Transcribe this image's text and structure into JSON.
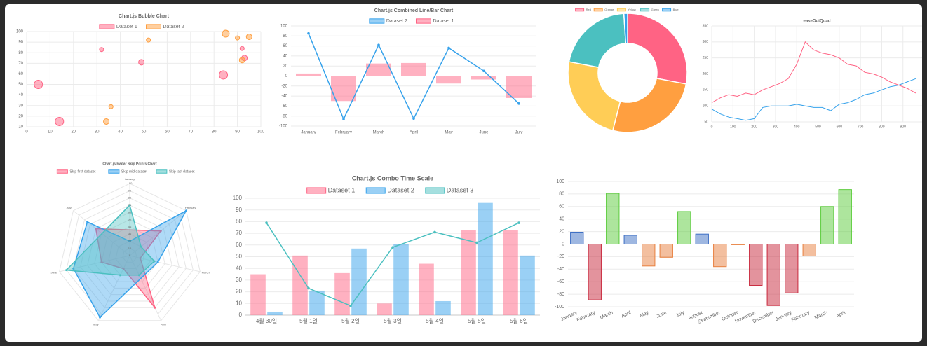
{
  "chart_data": [
    {
      "type": "bubble",
      "title": "Chart.js Bubble Chart",
      "xlim": [
        0,
        100
      ],
      "xticks": [
        0,
        10,
        20,
        30,
        40,
        50,
        60,
        70,
        80,
        90,
        100
      ],
      "ylim": [
        10,
        100
      ],
      "yticks": [
        10,
        20,
        30,
        40,
        50,
        60,
        70,
        80,
        90,
        100
      ],
      "grid": true,
      "series": [
        {
          "name": "Dataset 1",
          "color": "#ff6384",
          "x": [
            5,
            14,
            32,
            49,
            84,
            92,
            93
          ],
          "values": [
            50,
            15,
            83,
            71,
            59,
            84,
            75
          ],
          "r": [
            6,
            6,
            3,
            4,
            6,
            3,
            4
          ]
        },
        {
          "name": "Dataset 2",
          "color": "#ff9f40",
          "x": [
            34,
            36,
            52,
            85,
            90,
            92,
            95
          ],
          "values": [
            15,
            29,
            92,
            98,
            94,
            73,
            95
          ],
          "r": [
            4,
            3,
            3,
            5,
            3,
            4,
            4
          ]
        }
      ]
    },
    {
      "type": "bar",
      "title": "Chart.js Combined Line/Bar Chart",
      "categories": [
        "January",
        "February",
        "March",
        "April",
        "May",
        "June",
        "July"
      ],
      "ylim": [
        -100,
        100
      ],
      "yticks": [
        -100,
        -80,
        -60,
        -40,
        -20,
        0,
        20,
        40,
        60,
        80,
        100
      ],
      "grid": true,
      "series": [
        {
          "name": "Dataset 2",
          "type": "line",
          "color": "#36a2eb",
          "values": [
            85,
            -86,
            62,
            -85,
            56,
            10,
            -55
          ]
        },
        {
          "name": "Dataset 1",
          "type": "bar",
          "color": "#ff6384",
          "values": [
            5,
            -50,
            25,
            26,
            -15,
            -7,
            -44
          ]
        }
      ]
    },
    {
      "type": "doughnut",
      "categories": [
        "Red",
        "Orange",
        "Yellow",
        "Green",
        "Blue"
      ],
      "colors": [
        "#ff6384",
        "#ff9f40",
        "#ffcd56",
        "#4bc0c0",
        "#36a2eb"
      ],
      "values": [
        28,
        26,
        24,
        21,
        1
      ]
    },
    {
      "type": "line",
      "title": "easeOutQuad",
      "x": [
        0,
        40,
        80,
        120,
        160,
        200,
        240,
        280,
        320,
        360,
        400,
        440,
        480,
        520,
        560,
        600,
        640,
        680,
        720,
        760,
        800,
        840,
        880,
        920,
        960
      ],
      "xlim": [
        0,
        990
      ],
      "xticks": [
        0,
        100,
        200,
        300,
        400,
        500,
        600,
        700,
        800,
        900
      ],
      "ylim": [
        50,
        350
      ],
      "yticks": [
        50,
        100,
        150,
        200,
        250,
        300,
        350
      ],
      "grid": true,
      "series": [
        {
          "color": "#ff6384",
          "values": [
            110,
            125,
            135,
            130,
            140,
            135,
            150,
            160,
            170,
            185,
            230,
            300,
            275,
            265,
            260,
            250,
            230,
            225,
            205,
            200,
            190,
            175,
            165,
            155,
            140
          ]
        },
        {
          "color": "#36a2eb",
          "values": [
            90,
            75,
            65,
            60,
            55,
            60,
            95,
            100,
            100,
            100,
            105,
            100,
            95,
            95,
            85,
            105,
            110,
            120,
            135,
            140,
            150,
            160,
            165,
            175,
            185
          ]
        }
      ]
    },
    {
      "type": "radar",
      "title": "Chart.js Radar Skip Points Chart",
      "categories": [
        "January",
        "February",
        "March",
        "April",
        "May",
        "June",
        "July"
      ],
      "rlim": [
        0,
        100
      ],
      "rticks": [
        0,
        10,
        20,
        30,
        40,
        50,
        60,
        70,
        80,
        90,
        100
      ],
      "series": [
        {
          "name": "Skip first dataset",
          "color": "#ff6384",
          "values": [
            null,
            55,
            15,
            80,
            20,
            40,
            60
          ]
        },
        {
          "name": "Skip mid dataset",
          "color": "#36a2eb",
          "values": [
            20,
            100,
            40,
            null,
            95,
            80,
            75
          ]
        },
        {
          "name": "Skip last dataset",
          "color": "#4bc0c0",
          "values": [
            70,
            20,
            35,
            30,
            30,
            90,
            null
          ]
        }
      ]
    },
    {
      "type": "bar",
      "title": "Chart.js Combo Time Scale",
      "categories": [
        "4월 30일",
        "5월 1일",
        "5월 2일",
        "5월 3일",
        "5월 4일",
        "5월 5일",
        "5월 6일"
      ],
      "ylim": [
        0,
        100
      ],
      "yticks": [
        0,
        10,
        20,
        30,
        40,
        50,
        60,
        70,
        80,
        90,
        100
      ],
      "grid": true,
      "series": [
        {
          "name": "Dataset 1",
          "type": "bar",
          "color": "#ff6384",
          "values": [
            35,
            51,
            36,
            10,
            44,
            73,
            73
          ]
        },
        {
          "name": "Dataset 2",
          "type": "bar",
          "color": "#36a2eb",
          "values": [
            3,
            21,
            57,
            61,
            12,
            96,
            51
          ]
        },
        {
          "name": "Dataset 3",
          "type": "line",
          "color": "#4bc0c0",
          "values": [
            79,
            23,
            8,
            58,
            71,
            62,
            79
          ]
        }
      ]
    },
    {
      "type": "bar",
      "categories": [
        "January",
        "February",
        "March",
        "April",
        "May",
        "June",
        "July",
        "August",
        "September",
        "October",
        "November",
        "December",
        "January",
        "February",
        "March",
        "April"
      ],
      "ylim": [
        -100,
        100
      ],
      "yticks": [
        -100,
        -80,
        -60,
        -40,
        -20,
        0,
        20,
        40,
        60,
        80,
        100
      ],
      "grid": true,
      "values": [
        19,
        -89,
        81,
        14,
        -35,
        -21,
        52,
        16,
        -36,
        -1,
        -66,
        -98,
        -78,
        -19,
        60,
        87
      ],
      "colors": [
        "#3e6fc4",
        "#c8283c",
        "#5ccc3c",
        "#3e6fc4",
        "#e8803f",
        "#e8803f",
        "#5ccc3c",
        "#3e6fc4",
        "#e8803f",
        "#e8803f",
        "#c8283c",
        "#c8283c",
        "#c8283c",
        "#e8803f",
        "#5ccc3c",
        "#5ccc3c"
      ]
    }
  ]
}
